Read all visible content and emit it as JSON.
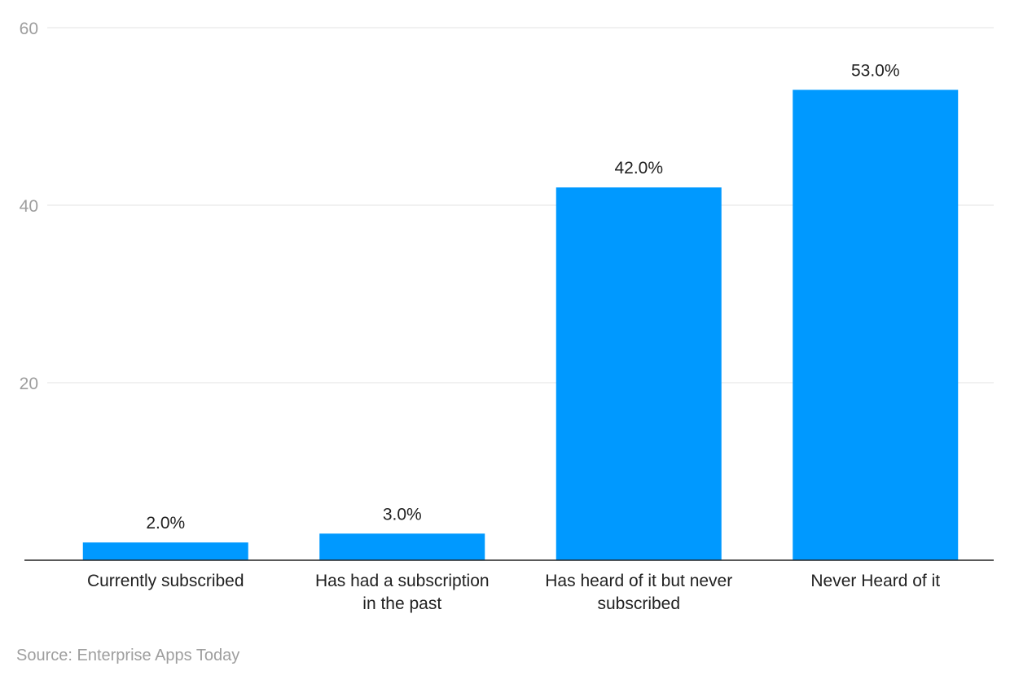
{
  "chart_data": {
    "type": "bar",
    "categories": [
      "Currently subscribed",
      "Has had a subscription in the past",
      "Has heard of it but never subscribed",
      "Never Heard of it"
    ],
    "category_label_lines": [
      [
        "Currently subscribed"
      ],
      [
        "Has had a subscription",
        "in the past"
      ],
      [
        "Has heard of it but never",
        "subscribed"
      ],
      [
        "Never Heard of it"
      ]
    ],
    "values": [
      2.0,
      3.0,
      42.0,
      53.0
    ],
    "data_labels": [
      "2.0%",
      "3.0%",
      "42.0%",
      "53.0%"
    ],
    "title": "",
    "xlabel": "",
    "ylabel": "",
    "ylim": [
      0,
      60
    ],
    "yticks": [
      20,
      40,
      60
    ],
    "grid": true,
    "legend": "none",
    "bar_color": "#0099ff"
  },
  "source": "Source: Enterprise Apps Today"
}
